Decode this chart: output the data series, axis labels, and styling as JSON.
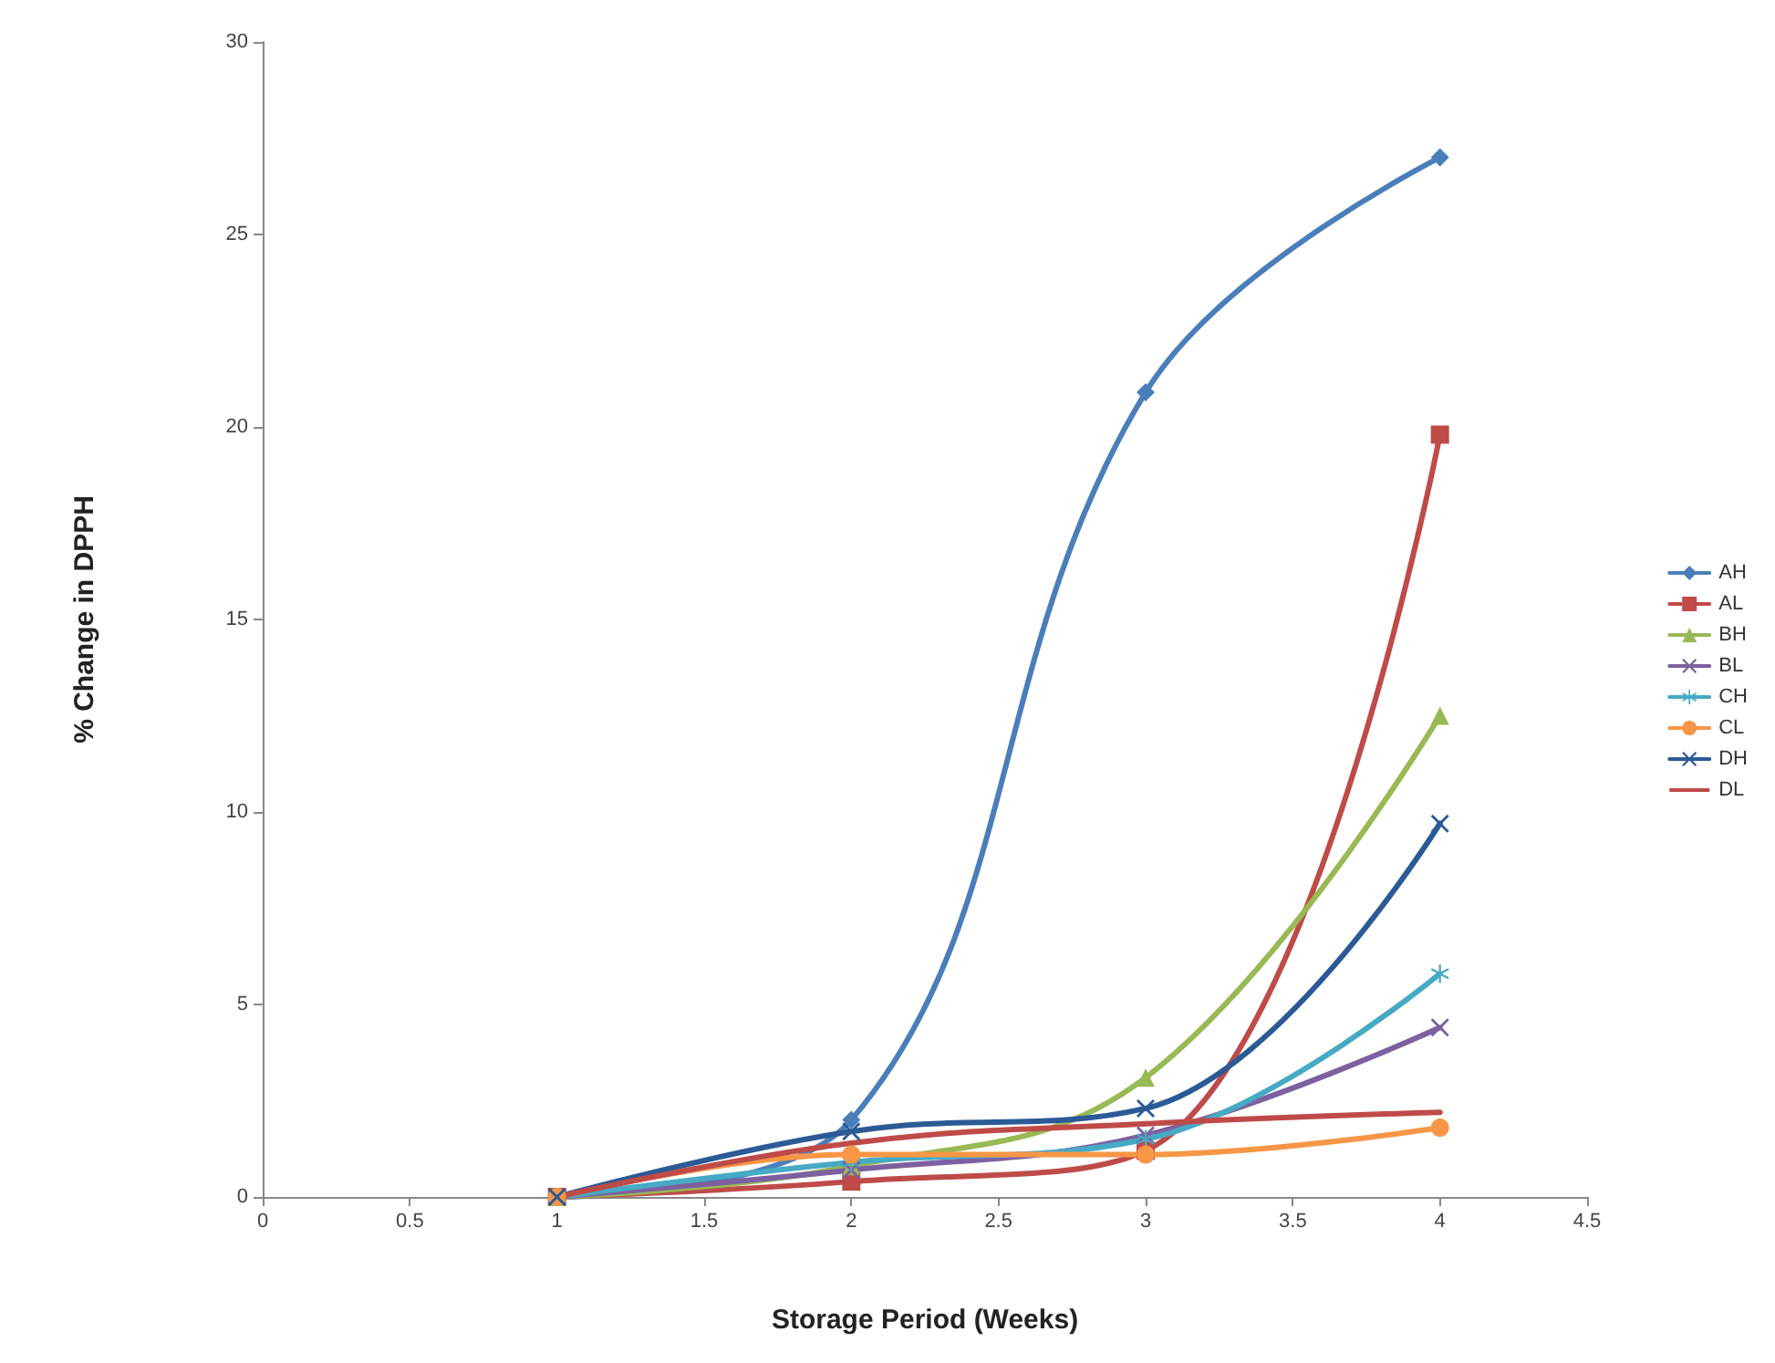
{
  "chart_data": {
    "type": "line",
    "xlabel": "Storage Period (Weeks)",
    "ylabel": "% Change in DPPH",
    "x": [
      1,
      2,
      3,
      4
    ],
    "series": [
      {
        "name": "AH",
        "color": "#4a7ebb",
        "marker": "diamond",
        "values": [
          0,
          2.0,
          20.9,
          27.0
        ]
      },
      {
        "name": "AL",
        "color": "#be4b48",
        "marker": "square",
        "values": [
          0,
          0.4,
          1.2,
          19.8
        ]
      },
      {
        "name": "BH",
        "color": "#98b954",
        "marker": "triangle",
        "values": [
          0,
          0.8,
          3.1,
          12.5
        ]
      },
      {
        "name": "BL",
        "color": "#7d60a0",
        "marker": "cross",
        "values": [
          0,
          0.7,
          1.6,
          4.4
        ]
      },
      {
        "name": "CH",
        "color": "#46aac5",
        "marker": "star",
        "values": [
          0,
          0.9,
          1.5,
          5.8
        ]
      },
      {
        "name": "CL",
        "color": "#f79646",
        "marker": "circle",
        "values": [
          0,
          1.1,
          1.1,
          1.8
        ]
      },
      {
        "name": "DH",
        "color": "#2b5a96",
        "marker": "cross",
        "values": [
          0,
          1.7,
          2.3,
          9.7
        ]
      },
      {
        "name": "DL",
        "color": "#be4b48",
        "marker": "none",
        "values": [
          0,
          1.4,
          1.9,
          2.2
        ]
      }
    ],
    "xlim": [
      0,
      4.5
    ],
    "xticks": [
      0,
      0.5,
      1,
      1.5,
      2,
      2.5,
      3,
      3.5,
      4,
      4.5
    ],
    "ylim": [
      0,
      30
    ],
    "yticks": [
      0,
      5,
      10,
      15,
      20,
      25,
      30
    ],
    "grid": false,
    "legend": "right",
    "line_style": "solid"
  }
}
